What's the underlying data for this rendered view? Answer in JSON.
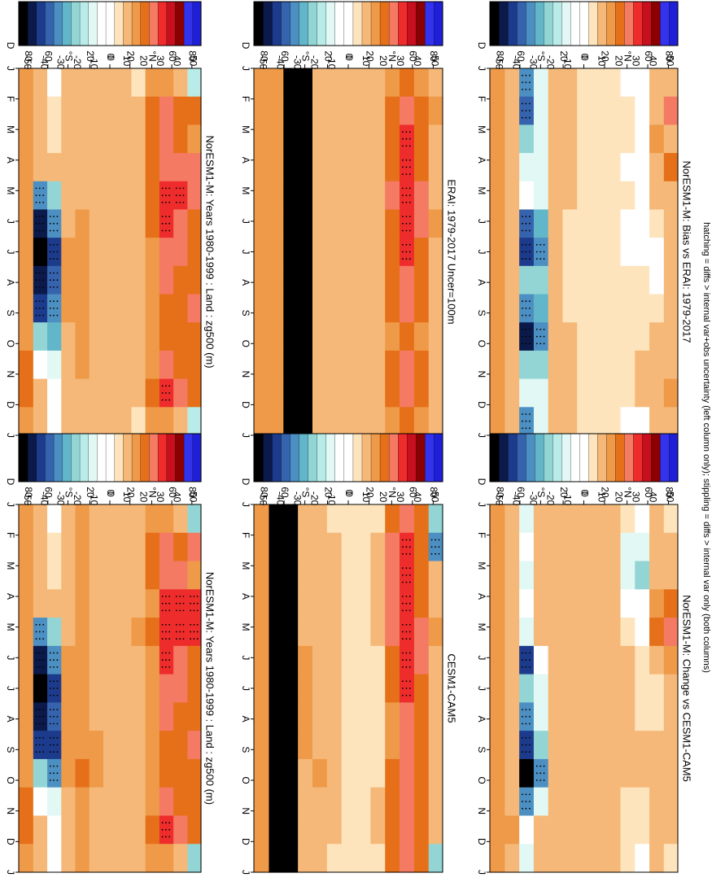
{
  "footnote": "hatching = diffs > internal var+obs uncertainty (left column only); stippling = diffs > internal var only (both columns)",
  "axis": {
    "months": [
      "J",
      "F",
      "M",
      "A",
      "M",
      "J",
      "J",
      "A",
      "S",
      "O",
      "N",
      "D",
      "J"
    ],
    "lat_ticks": [
      "80",
      "60",
      "°N",
      "20",
      "0",
      "20",
      "°S",
      "60",
      "80"
    ],
    "lat_end": "D"
  },
  "colorbar": {
    "labels": [
      "50",
      "40",
      "30",
      "20",
      "10",
      "0",
      "-10",
      "-20",
      "-30",
      "-40",
      "-50"
    ],
    "colors": [
      "#1f1fd8",
      "#3333ee",
      "#8b0000",
      "#c80f1e",
      "#ee2c2c",
      "#f47a63",
      "#e67019",
      "#ee9a49",
      "#f5b878",
      "#fde4bc",
      "#ffffff",
      "#ffffff",
      "#e1f8f5",
      "#b9ece9",
      "#93d5d5",
      "#62b6c9",
      "#4c8fc2",
      "#3563ad",
      "#1d3b8c",
      "#0b1a4a",
      "#000000"
    ]
  },
  "chart_data": [
    {
      "type": "heatmap",
      "title": "NorESM1-M: Years 1980-1999 : Land : zg500 (m)",
      "x": [
        "J",
        "F",
        "M",
        "A",
        "M",
        "J",
        "J",
        "A",
        "S",
        "O",
        "N",
        "D",
        "J"
      ],
      "y_ticks": [
        "80",
        "60",
        "°N",
        "20",
        "0",
        "20",
        "°S",
        "60",
        "80"
      ],
      "clim": [
        -50,
        50
      ],
      "field": "clim",
      "cells": [
        [
          -18,
          20,
          12,
          22,
          24,
          18,
          20,
          18,
          22,
          18,
          16,
          18,
          -18
        ],
        [
          10,
          18,
          20,
          24,
          28,
          22,
          22,
          20,
          18,
          16,
          20,
          22,
          10
        ],
        [
          14,
          22,
          24,
          24,
          28,
          26,
          24,
          22,
          20,
          18,
          22,
          26,
          14
        ],
        [
          14,
          18,
          18,
          16,
          18,
          16,
          14,
          14,
          14,
          12,
          14,
          18,
          14
        ],
        [
          4,
          6,
          10,
          10,
          10,
          8,
          10,
          10,
          8,
          8,
          8,
          8,
          4
        ],
        [
          6,
          8,
          8,
          8,
          6,
          6,
          6,
          6,
          6,
          6,
          6,
          6,
          6
        ],
        [
          8,
          8,
          6,
          6,
          6,
          6,
          6,
          6,
          6,
          8,
          8,
          8,
          8
        ],
        [
          8,
          10,
          8,
          8,
          8,
          10,
          10,
          10,
          10,
          10,
          8,
          8,
          8
        ],
        [
          10,
          10,
          10,
          10,
          10,
          12,
          12,
          12,
          12,
          14,
          12,
          10,
          10
        ],
        [
          6,
          6,
          8,
          8,
          10,
          10,
          12,
          12,
          12,
          10,
          8,
          6,
          6
        ],
        [
          0,
          2,
          4,
          6,
          -20,
          -30,
          -40,
          -35,
          -30,
          -25,
          -10,
          0,
          0
        ],
        [
          8,
          6,
          6,
          8,
          -30,
          -45,
          -50,
          -45,
          -40,
          -20,
          -5,
          8,
          8
        ],
        [
          14,
          14,
          14,
          14,
          14,
          14,
          12,
          12,
          14,
          14,
          16,
          16,
          14
        ]
      ]
    },
    {
      "type": "heatmap",
      "title": "NorESM1-M: Years 1980-1999 : Land : zg500 (m)",
      "x": [
        "J",
        "F",
        "M",
        "A",
        "M",
        "J",
        "J",
        "A",
        "S",
        "O",
        "N",
        "D",
        "J"
      ],
      "y_ticks": [
        "80",
        "60",
        "°N",
        "20",
        "0",
        "20",
        "°S",
        "60",
        "80"
      ],
      "clim": [
        -50,
        50
      ],
      "field": "clim",
      "cells": [
        [
          -20,
          22,
          14,
          26,
          26,
          20,
          20,
          18,
          22,
          18,
          16,
          18,
          -20
        ],
        [
          10,
          20,
          22,
          26,
          30,
          24,
          22,
          20,
          18,
          16,
          20,
          22,
          10
        ],
        [
          14,
          22,
          24,
          26,
          30,
          26,
          24,
          22,
          20,
          18,
          22,
          26,
          14
        ],
        [
          14,
          18,
          16,
          14,
          16,
          14,
          14,
          14,
          14,
          12,
          14,
          18,
          14
        ],
        [
          6,
          8,
          10,
          10,
          12,
          10,
          10,
          10,
          10,
          8,
          8,
          8,
          6
        ],
        [
          8,
          8,
          10,
          10,
          10,
          8,
          8,
          8,
          8,
          8,
          8,
          8,
          8
        ],
        [
          10,
          8,
          8,
          8,
          8,
          8,
          8,
          8,
          8,
          10,
          10,
          10,
          10
        ],
        [
          10,
          10,
          10,
          10,
          10,
          10,
          10,
          10,
          12,
          12,
          10,
          10,
          10
        ],
        [
          12,
          12,
          12,
          12,
          12,
          14,
          14,
          14,
          14,
          16,
          14,
          12,
          12
        ],
        [
          8,
          8,
          10,
          10,
          10,
          12,
          12,
          12,
          12,
          12,
          10,
          8,
          8
        ],
        [
          0,
          2,
          4,
          6,
          -20,
          -30,
          -40,
          -35,
          -40,
          -30,
          -10,
          0,
          0
        ],
        [
          8,
          6,
          6,
          8,
          -30,
          -45,
          -50,
          -45,
          -40,
          -20,
          -5,
          8,
          8
        ],
        [
          14,
          14,
          14,
          14,
          14,
          14,
          12,
          12,
          14,
          14,
          16,
          16,
          14
        ]
      ]
    },
    {
      "type": "heatmap",
      "title": "ERAI: 1979-2017 Uncer=100m",
      "x": [
        "J",
        "F",
        "M",
        "A",
        "M",
        "J",
        "J",
        "A",
        "S",
        "O",
        "N",
        "D",
        "J"
      ],
      "y_ticks": [
        "80",
        "60",
        "°N",
        "20",
        "0",
        "20",
        "°S",
        "60",
        "80"
      ],
      "clim": [
        -50,
        50
      ],
      "field": "clim",
      "cells": [
        [
          8,
          14,
          8,
          10,
          10,
          12,
          10,
          8,
          10,
          8,
          8,
          10,
          8
        ],
        [
          12,
          16,
          18,
          18,
          22,
          22,
          20,
          18,
          16,
          14,
          16,
          16,
          12
        ],
        [
          18,
          22,
          26,
          28,
          30,
          28,
          26,
          24,
          22,
          20,
          22,
          22,
          18
        ],
        [
          14,
          18,
          20,
          20,
          22,
          20,
          18,
          18,
          16,
          14,
          16,
          18,
          14
        ],
        [
          8,
          8,
          8,
          10,
          10,
          10,
          10,
          10,
          10,
          8,
          8,
          8,
          8
        ],
        [
          8,
          8,
          8,
          8,
          8,
          8,
          8,
          8,
          8,
          8,
          8,
          8,
          8
        ],
        [
          8,
          8,
          8,
          8,
          8,
          8,
          8,
          8,
          8,
          8,
          8,
          8,
          8
        ],
        [
          8,
          8,
          8,
          8,
          8,
          8,
          8,
          8,
          8,
          8,
          8,
          8,
          8
        ],
        [
          8,
          8,
          8,
          8,
          8,
          8,
          8,
          8,
          8,
          8,
          8,
          8,
          8
        ],
        [
          -50,
          -50,
          -50,
          -50,
          -50,
          -50,
          -50,
          -50,
          -50,
          -50,
          -50,
          -50,
          -50
        ],
        [
          -50,
          -50,
          -50,
          -50,
          -50,
          -50,
          -50,
          -50,
          -50,
          -50,
          -50,
          -50,
          -50
        ],
        [
          12,
          12,
          12,
          12,
          12,
          12,
          12,
          12,
          12,
          12,
          12,
          12,
          12
        ],
        [
          14,
          14,
          14,
          14,
          14,
          14,
          14,
          14,
          14,
          14,
          14,
          14,
          14
        ]
      ]
    },
    {
      "type": "heatmap",
      "title": "CESM1-CAM5",
      "x": [
        "J",
        "F",
        "M",
        "A",
        "M",
        "J",
        "J",
        "A",
        "S",
        "O",
        "N",
        "D",
        "J"
      ],
      "y_ticks": [
        "80",
        "60",
        "°N",
        "20",
        "0",
        "20",
        "°S",
        "60",
        "80"
      ],
      "clim": [
        -50,
        50
      ],
      "field": "clim",
      "cells": [
        [
          -20,
          -30,
          8,
          10,
          12,
          10,
          8,
          6,
          10,
          8,
          6,
          8,
          -20
        ],
        [
          16,
          20,
          18,
          20,
          22,
          22,
          20,
          18,
          18,
          20,
          18,
          18,
          16
        ],
        [
          22,
          30,
          28,
          30,
          30,
          30,
          26,
          24,
          22,
          24,
          22,
          22,
          22
        ],
        [
          16,
          24,
          22,
          22,
          22,
          18,
          16,
          14,
          14,
          16,
          16,
          18,
          16
        ],
        [
          4,
          8,
          8,
          8,
          6,
          4,
          2,
          2,
          4,
          4,
          6,
          6,
          4
        ],
        [
          2,
          4,
          4,
          4,
          4,
          4,
          4,
          4,
          4,
          4,
          4,
          4,
          2
        ],
        [
          2,
          4,
          4,
          4,
          4,
          4,
          4,
          4,
          4,
          4,
          4,
          4,
          2
        ],
        [
          4,
          6,
          6,
          8,
          6,
          6,
          6,
          6,
          6,
          6,
          6,
          6,
          4
        ],
        [
          6,
          8,
          8,
          8,
          8,
          8,
          10,
          10,
          10,
          12,
          10,
          8,
          6
        ],
        [
          10,
          10,
          10,
          10,
          10,
          12,
          14,
          14,
          12,
          10,
          10,
          10,
          10
        ],
        [
          -50,
          -50,
          -50,
          -50,
          -50,
          -50,
          -50,
          -50,
          -50,
          -50,
          -50,
          -50,
          -50
        ],
        [
          -50,
          -50,
          -50,
          -50,
          -50,
          -50,
          -50,
          -50,
          -50,
          -50,
          -50,
          -50,
          -50
        ],
        [
          12,
          12,
          12,
          12,
          12,
          12,
          12,
          12,
          12,
          12,
          12,
          12,
          12
        ]
      ]
    },
    {
      "type": "heatmap",
      "title": "NorESM1-M: Bias vs ERAI: 1979-2017",
      "x": [
        "J",
        "F",
        "M",
        "A",
        "M",
        "J",
        "J",
        "A",
        "S",
        "O",
        "N",
        "D",
        "J"
      ],
      "y_ticks": [
        "80",
        "60",
        "°N",
        "20",
        "0",
        "20",
        "°S",
        "60",
        "80"
      ],
      "clim": [
        -50,
        50
      ],
      "field": "diff",
      "cells": [
        [
          8,
          22,
          10,
          20,
          10,
          6,
          8,
          10,
          10,
          8,
          6,
          12,
          8
        ],
        [
          8,
          10,
          12,
          10,
          8,
          4,
          0,
          0,
          4,
          6,
          8,
          10,
          8
        ],
        [
          0,
          0,
          -6,
          -6,
          -4,
          -4,
          0,
          2,
          4,
          4,
          6,
          6,
          0
        ],
        [
          0,
          4,
          2,
          0,
          2,
          -4,
          -6,
          4,
          2,
          2,
          2,
          4,
          0
        ],
        [
          4,
          4,
          4,
          4,
          4,
          4,
          4,
          4,
          4,
          4,
          4,
          4,
          4
        ],
        [
          4,
          4,
          4,
          4,
          4,
          4,
          4,
          4,
          4,
          4,
          4,
          4,
          4
        ],
        [
          4,
          4,
          4,
          4,
          4,
          4,
          4,
          4,
          4,
          4,
          4,
          4,
          4
        ],
        [
          6,
          6,
          6,
          6,
          6,
          4,
          4,
          4,
          4,
          6,
          6,
          6,
          6
        ],
        [
          10,
          8,
          8,
          6,
          6,
          6,
          8,
          8,
          10,
          10,
          10,
          10,
          10
        ],
        [
          -10,
          -10,
          -10,
          -10,
          -10,
          -25,
          -30,
          -20,
          -25,
          -30,
          -20,
          -10,
          -10
        ],
        [
          -30,
          -35,
          -20,
          -10,
          -5,
          -35,
          -40,
          -20,
          -30,
          -45,
          -20,
          -10,
          -30
        ],
        [
          8,
          8,
          8,
          8,
          8,
          8,
          8,
          8,
          8,
          10,
          10,
          10,
          8
        ],
        [
          12,
          12,
          12,
          12,
          12,
          12,
          12,
          12,
          12,
          12,
          12,
          12,
          12
        ]
      ]
    },
    {
      "type": "heatmap",
      "title": "NorESM1-M: Change vs CESM1-CAM5",
      "x": [
        "J",
        "F",
        "M",
        "A",
        "M",
        "J",
        "J",
        "A",
        "S",
        "O",
        "N",
        "D",
        "J"
      ],
      "y_ticks": [
        "80",
        "60",
        "°N",
        "20",
        "0",
        "20",
        "°S",
        "60",
        "80"
      ],
      "clim": [
        -50,
        50
      ],
      "field": "diff",
      "cells": [
        [
          4,
          6,
          8,
          16,
          22,
          12,
          10,
          8,
          6,
          8,
          6,
          10,
          4
        ],
        [
          6,
          8,
          10,
          14,
          16,
          8,
          4,
          4,
          6,
          8,
          6,
          8,
          6
        ],
        [
          0,
          -12,
          -20,
          -4,
          0,
          4,
          4,
          4,
          6,
          6,
          4,
          4,
          0
        ],
        [
          4,
          -10,
          -14,
          0,
          4,
          6,
          8,
          8,
          8,
          6,
          4,
          4,
          4
        ],
        [
          6,
          6,
          6,
          6,
          8,
          8,
          8,
          8,
          8,
          8,
          6,
          6,
          6
        ],
        [
          6,
          6,
          6,
          6,
          6,
          6,
          6,
          6,
          6,
          6,
          6,
          6,
          6
        ],
        [
          6,
          6,
          6,
          6,
          6,
          8,
          8,
          8,
          8,
          8,
          6,
          6,
          6
        ],
        [
          8,
          8,
          8,
          8,
          8,
          10,
          10,
          10,
          10,
          10,
          8,
          8,
          8
        ],
        [
          10,
          10,
          10,
          10,
          10,
          10,
          10,
          10,
          10,
          10,
          10,
          10,
          10
        ],
        [
          6,
          6,
          6,
          6,
          6,
          -6,
          -10,
          -14,
          -20,
          -30,
          -14,
          6,
          6
        ],
        [
          -10,
          -8,
          -10,
          -8,
          -10,
          -40,
          -20,
          -30,
          -40,
          -50,
          -30,
          -8,
          -10
        ],
        [
          10,
          10,
          10,
          10,
          10,
          8,
          8,
          8,
          10,
          10,
          10,
          12,
          10
        ],
        [
          12,
          12,
          12,
          12,
          12,
          12,
          12,
          12,
          12,
          12,
          12,
          12,
          12
        ]
      ]
    }
  ]
}
